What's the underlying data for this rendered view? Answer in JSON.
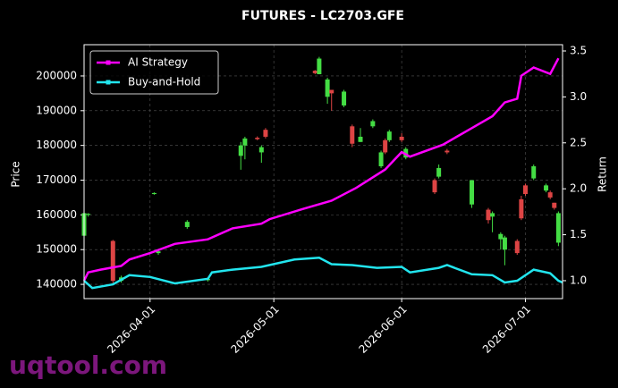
{
  "chart_data": {
    "type": "candlestick",
    "title": "FUTURES - LC2703.GFE",
    "ylabel": "Price",
    "y2label": "Return",
    "watermark": "uqtool.com",
    "grid": true,
    "legend": "upper left",
    "up_color": "#44dd44",
    "down_color": "#dd4444",
    "xlim": [
      "2026-03-16",
      "2026-07-10"
    ],
    "xticks": [
      "2026-04-01",
      "2026-05-01",
      "2026-06-01",
      "2026-07-01"
    ],
    "ylim": [
      135900,
      209000
    ],
    "yticks": [
      140000,
      150000,
      160000,
      170000,
      180000,
      190000,
      200000
    ],
    "y2lim": [
      0.805,
      3.568
    ],
    "y2ticks": [
      {
        "value": 1,
        "label": "1.0"
      },
      1.5,
      {
        "value": 2,
        "label": "2.0"
      },
      2.5,
      {
        "value": 3,
        "label": "3.0"
      },
      3.5
    ],
    "x": [
      "2026-03-16",
      "2026-03-17",
      "2026-03-23",
      "2026-03-25",
      "2026-04-02",
      "2026-04-03",
      "2026-04-10",
      "2026-04-15",
      "2026-04-23",
      "2026-04-24",
      "2026-04-27",
      "2026-04-28",
      "2026-04-29",
      "2026-05-11",
      "2026-05-12",
      "2026-05-14",
      "2026-05-15",
      "2026-05-18",
      "2026-05-20",
      "2026-05-22",
      "2026-05-25",
      "2026-05-27",
      "2026-05-28",
      "2026-05-29",
      "2026-06-01",
      "2026-06-02",
      "2026-06-09",
      "2026-06-10",
      "2026-06-12",
      "2026-06-18",
      "2026-06-22",
      "2026-06-23",
      "2026-06-25",
      "2026-06-26",
      "2026-06-29",
      "2026-06-30",
      "2026-07-01",
      "2026-07-03",
      "2026-07-06",
      "2026-07-07",
      "2026-07-08",
      "2026-07-09"
    ],
    "open": [
      154000,
      160000,
      152500,
      141000,
      166000,
      149000,
      156500,
      141200,
      177000,
      180000,
      182200,
      178000,
      184500,
      201500,
      200500,
      194000,
      196000,
      191500,
      185500,
      181000,
      185500,
      174000,
      181500,
      181500,
      182500,
      176500,
      170000,
      171000,
      178500,
      163000,
      161500,
      159500,
      153000,
      150000,
      152500,
      164500,
      168500,
      170500,
      167000,
      166500,
      163500,
      152000
    ],
    "high": [
      162000,
      160500,
      152800,
      142500,
      166500,
      149800,
      158500,
      141800,
      181000,
      182500,
      182600,
      180000,
      185000,
      201700,
      205500,
      199500,
      196000,
      196000,
      186000,
      185000,
      187500,
      178500,
      182000,
      184500,
      183500,
      179500,
      170500,
      174500,
      179000,
      170000,
      162000,
      161000,
      155000,
      154000,
      153000,
      165500,
      169000,
      174500,
      169000,
      167000,
      163500,
      161000
    ],
    "low": [
      152000,
      159500,
      140000,
      140500,
      165800,
      148500,
      156000,
      140800,
      173000,
      176000,
      181500,
      175000,
      182000,
      200500,
      200500,
      192000,
      190000,
      191000,
      179500,
      181000,
      185000,
      173500,
      177500,
      181000,
      181000,
      176000,
      166000,
      170500,
      177500,
      162000,
      157500,
      155000,
      150000,
      145500,
      148500,
      158500,
      165500,
      170000,
      166500,
      164500,
      161500,
      151000
    ],
    "close": [
      160500,
      160300,
      141000,
      142000,
      166300,
      149500,
      158000,
      141600,
      180000,
      182000,
      181800,
      179500,
      182500,
      200800,
      205000,
      199000,
      195000,
      195500,
      180500,
      182500,
      187000,
      178000,
      178000,
      184000,
      181500,
      179000,
      166500,
      173500,
      178000,
      170000,
      158500,
      160500,
      154500,
      153500,
      149000,
      159000,
      166000,
      174000,
      168500,
      165000,
      162000,
      160500
    ],
    "series": [
      {
        "name": "AI Strategy",
        "color": "#ff00ff",
        "axis": "y2",
        "x": [
          "2026-03-16",
          "2026-03-17",
          "2026-03-20",
          "2026-03-25",
          "2026-03-27",
          "2026-04-01",
          "2026-04-07",
          "2026-04-15",
          "2026-04-21",
          "2026-04-28",
          "2026-04-30",
          "2026-05-08",
          "2026-05-15",
          "2026-05-21",
          "2026-05-28",
          "2026-06-01",
          "2026-06-03",
          "2026-06-11",
          "2026-06-18",
          "2026-06-23",
          "2026-06-26",
          "2026-06-29",
          "2026-06-30",
          "2026-07-03",
          "2026-07-07",
          "2026-07-09"
        ],
        "values": [
          1.0,
          1.09,
          1.12,
          1.16,
          1.23,
          1.3,
          1.4,
          1.45,
          1.57,
          1.62,
          1.67,
          1.78,
          1.87,
          2.01,
          2.21,
          2.4,
          2.35,
          2.48,
          2.66,
          2.79,
          2.94,
          2.98,
          3.23,
          3.32,
          3.25,
          3.42
        ]
      },
      {
        "name": "Buy-and-Hold",
        "color": "#22e5ee",
        "axis": "y2",
        "x": [
          "2026-03-16",
          "2026-03-18",
          "2026-03-23",
          "2026-03-27",
          "2026-04-01",
          "2026-04-07",
          "2026-04-15",
          "2026-04-16",
          "2026-04-21",
          "2026-04-28",
          "2026-05-06",
          "2026-05-12",
          "2026-05-15",
          "2026-05-20",
          "2026-05-26",
          "2026-06-01",
          "2026-06-03",
          "2026-06-10",
          "2026-06-12",
          "2026-06-18",
          "2026-06-23",
          "2026-06-26",
          "2026-06-29",
          "2026-07-03",
          "2026-07-07",
          "2026-07-09",
          "2026-07-10"
        ],
        "values": [
          1.0,
          0.92,
          0.96,
          1.06,
          1.04,
          0.97,
          1.02,
          1.09,
          1.12,
          1.15,
          1.23,
          1.25,
          1.18,
          1.17,
          1.14,
          1.15,
          1.09,
          1.14,
          1.17,
          1.07,
          1.06,
          0.98,
          1.0,
          1.12,
          1.08,
          1.0,
          0.98
        ]
      }
    ]
  }
}
